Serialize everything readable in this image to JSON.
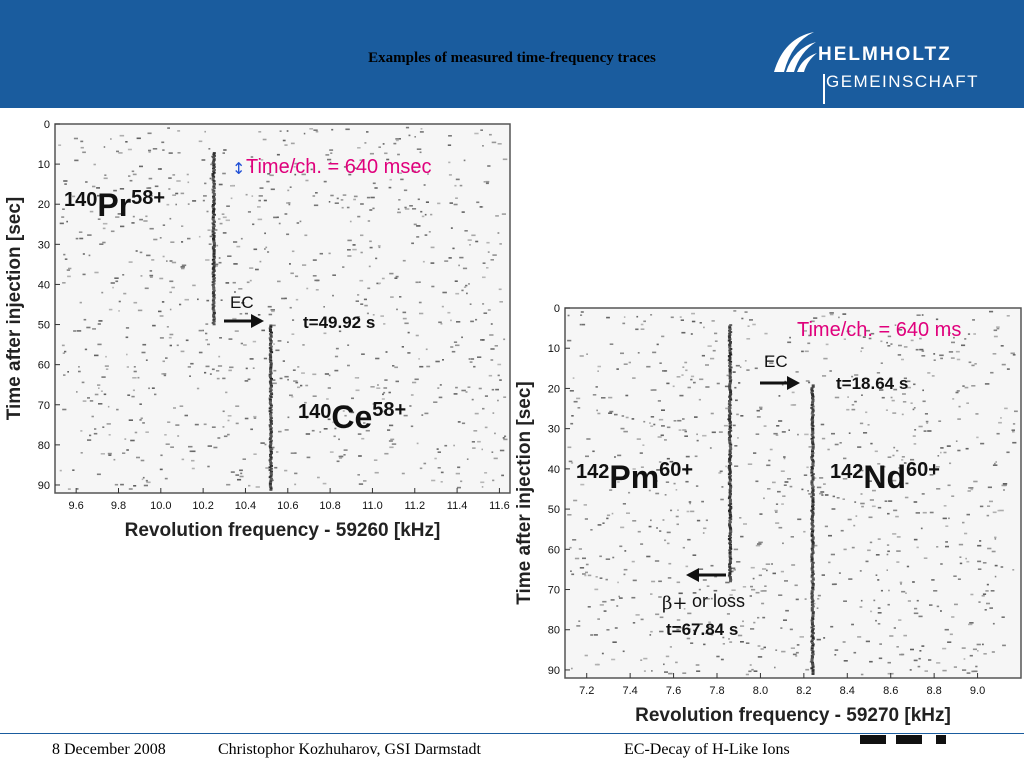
{
  "slide": {
    "title": "Examples of measured time-frequency traces",
    "logo": {
      "line1": "HELMHOLTZ",
      "line2": "GEMEINSCHAFT"
    },
    "footer": {
      "date": "8 December 2008",
      "author": "Christophor Kozhuharov, GSI Darmstadt",
      "topic": "EC-Decay of H-Like Ions"
    },
    "gsi_logo_text": "GSI"
  },
  "colors": {
    "header": "#1a5c9e",
    "annotation_pink": "#e0007c"
  },
  "chart_data": [
    {
      "type": "scatter",
      "xlabel": "Revolution frequency - 59260 [kHz]",
      "ylabel": "Time after injection [sec]",
      "xlim": [
        9.5,
        11.65
      ],
      "ylim": [
        0,
        92
      ],
      "y_inverted": true,
      "x_ticks": [
        "9.6",
        "9.8",
        "10.0",
        "10.2",
        "10.4",
        "10.6",
        "10.8",
        "11.0",
        "11.2",
        "11.4",
        "11.6"
      ],
      "y_ticks": [
        "0",
        "10",
        "20",
        "30",
        "40",
        "50",
        "60",
        "70",
        "80",
        "90"
      ],
      "time_per_channel_label": "Time/ch. = 640 msec",
      "parent": {
        "mass": "140",
        "element": "Pr",
        "charge": "58+"
      },
      "daughter": {
        "mass": "140",
        "element": "Ce",
        "charge": "58+"
      },
      "decay_label": "EC",
      "decay_time_label": "t=49.92 s",
      "series": [
        {
          "x": 10.25,
          "y_start": 7,
          "y_end": 50
        },
        {
          "x": 10.52,
          "y_start": 50,
          "y_end": 91
        }
      ]
    },
    {
      "type": "scatter",
      "xlabel": "Revolution frequency - 59270 [kHz]",
      "ylabel": "Time after injection [sec]",
      "xlim": [
        7.1,
        9.2
      ],
      "ylim": [
        0,
        92
      ],
      "y_inverted": true,
      "x_ticks": [
        "7.2",
        "7.4",
        "7.6",
        "7.8",
        "8.0",
        "8.2",
        "8.4",
        "8.6",
        "8.8",
        "9.0"
      ],
      "y_ticks": [
        "0",
        "10",
        "20",
        "30",
        "40",
        "50",
        "60",
        "70",
        "80",
        "90"
      ],
      "time_per_channel_label": "Time/ch. = 640 ms",
      "parent": {
        "mass": "142",
        "element": "Pm",
        "charge": "60+"
      },
      "daughter": {
        "mass": "142",
        "element": "Nd",
        "charge": "60+"
      },
      "decay_label": "EC",
      "decay_time_label": "t=18.64 s",
      "loss_label_symbol": "β+",
      "loss_label": "or loss",
      "loss_time_label": "t=67.84 s",
      "series": [
        {
          "x": 7.86,
          "y_start": 4,
          "y_end": 68
        },
        {
          "x": 8.24,
          "y_start": 19,
          "y_end": 91
        }
      ]
    }
  ]
}
